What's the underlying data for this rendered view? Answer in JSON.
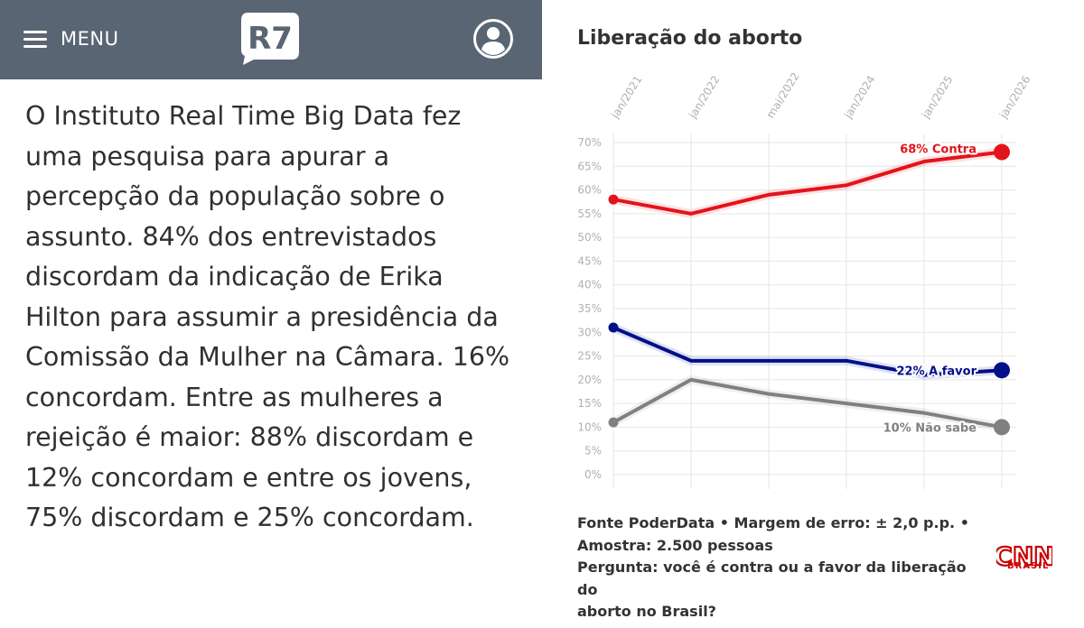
{
  "header": {
    "menu_label": "MENU",
    "logo_text": "R7",
    "bg_color": "#5a6573"
  },
  "article": {
    "paragraph": "O Instituto Real Time Big Data fez uma pesquisa para apurar a percepção da população sobre o assunto. 84% dos entrevistados discordam da indicação de Erika Hilton para assumir a presidência da Comissão da Mulher na Câmara. 16% concordam. Entre as mulheres a rejeição é maior: 88% discordam e 12% concordam e entre os jovens, 75% discordam e 25% concordam."
  },
  "chart_data": {
    "type": "line",
    "title": "Liberação do aborto",
    "x": [
      "jan/2021",
      "jan/2022",
      "mai/2022",
      "jan/2024",
      "jan/2025",
      "jan/2026"
    ],
    "ylim": [
      0,
      70
    ],
    "yticks": [
      0,
      5,
      10,
      15,
      20,
      25,
      30,
      35,
      40,
      45,
      50,
      55,
      60,
      65,
      70
    ],
    "ytick_format": "%",
    "grid": true,
    "series": [
      {
        "name": "Contra",
        "label": "68% Contra",
        "color": "#e3131b",
        "values": [
          58,
          55,
          59,
          61,
          66,
          68
        ]
      },
      {
        "name": "A favor",
        "label": "22% A favor",
        "color": "#000f8a",
        "values": [
          31,
          24,
          24,
          24,
          21,
          22
        ]
      },
      {
        "name": "Não sabe",
        "label": "10% Não sabe",
        "color": "#808080",
        "values": [
          11,
          20,
          17,
          15,
          13,
          10
        ]
      }
    ]
  },
  "footer": {
    "line1": "Fonte PoderData • Margem de erro: ± 2,0 p.p. •",
    "line2": "Amostra: 2.500 pessoas",
    "line3": "Pergunta: você é contra ou a favor da liberação do",
    "line4": "aborto no Brasil?"
  },
  "brand": {
    "cnn": "CNN",
    "cnn_sub": "BRASIL",
    "cnn_color": "#cc0000"
  }
}
